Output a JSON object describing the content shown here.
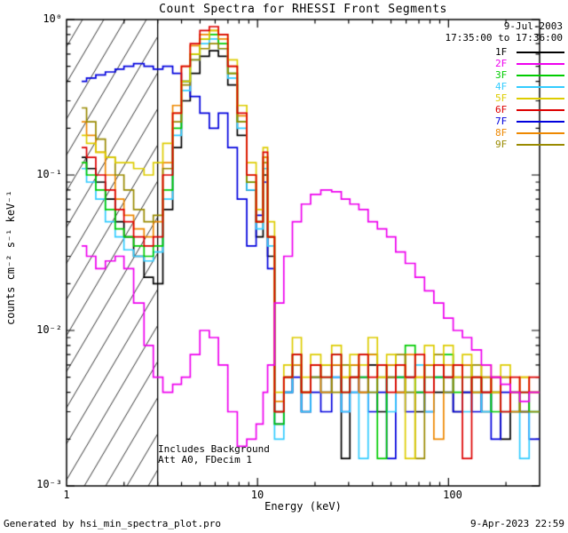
{
  "header": {
    "date": "9-Jul-2003",
    "time_range": "17:35:00 to 17:36:00"
  },
  "annotations": {
    "background_note": "Includes Background",
    "attenuator_note": "Att A0, FDecim 1"
  },
  "footer": {
    "left": "Generated by hsi_min_spectra_plot.pro",
    "right": "9-Apr-2023 22:59"
  },
  "chart_data": {
    "type": "line",
    "style": "step-histogram",
    "title": "Count Spectra for RHESSI Front Segments",
    "xlabel": "Energy (keV)",
    "ylabel": "counts cm⁻² s⁻¹ keV⁻¹",
    "xscale": "log",
    "yscale": "log",
    "xlim": [
      1,
      300
    ],
    "ylim": [
      0.001,
      1
    ],
    "grid": false,
    "legend_position": "top-right",
    "excluded_region": {
      "xmin": 1,
      "xmax": 3,
      "style": "diagonal-hatch"
    },
    "x_ticks": [
      {
        "value": 1,
        "label": "1"
      },
      {
        "value": 10,
        "label": "10"
      },
      {
        "value": 100,
        "label": "100"
      }
    ],
    "y_ticks": [
      {
        "value": 1,
        "label": "10⁰"
      },
      {
        "value": 0.1,
        "label": "10⁻¹"
      },
      {
        "value": 0.01,
        "label": "10⁻²"
      },
      {
        "value": 0.001,
        "label": "10⁻³"
      }
    ],
    "x": [
      1.2,
      1.35,
      1.5,
      1.7,
      1.9,
      2.1,
      2.4,
      2.7,
      3.0,
      3.4,
      3.8,
      4.2,
      4.7,
      5.3,
      5.9,
      6.6,
      7.4,
      8.3,
      9.3,
      10.4,
      11.0,
      11.6,
      13,
      14.5,
      16,
      18,
      20,
      23,
      26,
      29,
      32,
      36,
      40,
      45,
      50,
      56,
      63,
      71,
      79,
      89,
      100,
      112,
      125,
      140,
      158,
      177,
      199,
      223,
      250,
      280
    ],
    "series": [
      {
        "name": "1F",
        "color": "#000000",
        "values": [
          0.13,
          0.11,
          0.09,
          0.07,
          0.05,
          0.04,
          0.03,
          0.022,
          0.02,
          0.06,
          0.15,
          0.3,
          0.45,
          0.58,
          0.63,
          0.58,
          0.38,
          0.18,
          0.08,
          0.04,
          0.1,
          0.03,
          0.003,
          0.004,
          0.006,
          0.003,
          0.005,
          0.004,
          0.006,
          0.0015,
          0.005,
          0.004,
          0.006,
          0.003,
          0.005,
          0.004,
          0.005,
          0.003,
          0.006,
          0.004,
          0.005,
          0.003,
          0.004,
          0.005,
          0.003,
          0.004,
          0.002,
          0.004,
          0.003,
          0.004
        ]
      },
      {
        "name": "2F",
        "color": "#ee00ee",
        "values": [
          0.035,
          0.03,
          0.025,
          0.028,
          0.03,
          0.025,
          0.015,
          0.008,
          0.005,
          0.004,
          0.0045,
          0.005,
          0.007,
          0.01,
          0.009,
          0.006,
          0.003,
          0.0018,
          0.002,
          0.0025,
          0.004,
          0.006,
          0.015,
          0.03,
          0.05,
          0.065,
          0.075,
          0.08,
          0.078,
          0.07,
          0.065,
          0.06,
          0.05,
          0.045,
          0.04,
          0.032,
          0.027,
          0.022,
          0.018,
          0.015,
          0.012,
          0.01,
          0.009,
          0.0075,
          0.006,
          0.005,
          0.0045,
          0.004,
          0.0035,
          0.004
        ]
      },
      {
        "name": "3F",
        "color": "#00cc00",
        "values": [
          0.12,
          0.1,
          0.08,
          0.06,
          0.045,
          0.04,
          0.035,
          0.03,
          0.035,
          0.08,
          0.2,
          0.4,
          0.6,
          0.75,
          0.8,
          0.7,
          0.45,
          0.22,
          0.09,
          0.05,
          0.13,
          0.04,
          0.0025,
          0.005,
          0.007,
          0.004,
          0.006,
          0.005,
          0.007,
          0.004,
          0.006,
          0.005,
          0.007,
          0.0015,
          0.006,
          0.005,
          0.008,
          0.004,
          0.006,
          0.005,
          0.007,
          0.004,
          0.006,
          0.004,
          0.005,
          0.003,
          0.005,
          0.003,
          0.004,
          0.003
        ]
      },
      {
        "name": "4F",
        "color": "#33ccff",
        "values": [
          0.11,
          0.09,
          0.07,
          0.05,
          0.04,
          0.033,
          0.03,
          0.028,
          0.032,
          0.07,
          0.18,
          0.35,
          0.55,
          0.7,
          0.75,
          0.65,
          0.42,
          0.2,
          0.08,
          0.045,
          0.11,
          0.035,
          0.002,
          0.004,
          0.006,
          0.003,
          0.005,
          0.004,
          0.005,
          0.003,
          0.004,
          0.0015,
          0.004,
          0.005,
          0.003,
          0.005,
          0.004,
          0.006,
          0.003,
          0.005,
          0.004,
          0.005,
          0.003,
          0.004,
          0.003,
          0.004,
          0.003,
          0.004,
          0.0015,
          0.003
        ]
      },
      {
        "name": "5F",
        "color": "#ddcc00",
        "values": [
          0.18,
          0.16,
          0.14,
          0.13,
          0.12,
          0.12,
          0.11,
          0.1,
          0.12,
          0.16,
          0.25,
          0.4,
          0.6,
          0.75,
          0.85,
          0.8,
          0.55,
          0.28,
          0.12,
          0.06,
          0.15,
          0.05,
          0.004,
          0.006,
          0.009,
          0.005,
          0.007,
          0.006,
          0.008,
          0.005,
          0.007,
          0.006,
          0.009,
          0.005,
          0.007,
          0.006,
          0.0015,
          0.005,
          0.008,
          0.006,
          0.008,
          0.005,
          0.007,
          0.005,
          0.006,
          0.004,
          0.006,
          0.004,
          0.005,
          0.004
        ]
      },
      {
        "name": "6F",
        "color": "#dd0000",
        "values": [
          0.15,
          0.13,
          0.1,
          0.08,
          0.06,
          0.05,
          0.04,
          0.035,
          0.04,
          0.1,
          0.25,
          0.5,
          0.7,
          0.85,
          0.9,
          0.8,
          0.5,
          0.25,
          0.1,
          0.05,
          0.14,
          0.04,
          0.003,
          0.005,
          0.007,
          0.004,
          0.006,
          0.005,
          0.007,
          0.004,
          0.005,
          0.007,
          0.005,
          0.006,
          0.004,
          0.006,
          0.005,
          0.007,
          0.004,
          0.006,
          0.005,
          0.006,
          0.0015,
          0.005,
          0.004,
          0.005,
          0.003,
          0.005,
          0.004,
          0.005
        ]
      },
      {
        "name": "7F",
        "color": "#0000dd",
        "values": [
          0.4,
          0.42,
          0.44,
          0.46,
          0.48,
          0.5,
          0.52,
          0.5,
          0.48,
          0.5,
          0.45,
          0.4,
          0.32,
          0.25,
          0.2,
          0.25,
          0.15,
          0.07,
          0.035,
          0.055,
          0.09,
          0.025,
          0.0025,
          0.004,
          0.005,
          0.003,
          0.004,
          0.003,
          0.005,
          0.003,
          0.004,
          0.005,
          0.003,
          0.004,
          0.0015,
          0.005,
          0.003,
          0.004,
          0.003,
          0.005,
          0.004,
          0.003,
          0.004,
          0.003,
          0.004,
          0.002,
          0.004,
          0.003,
          0.003,
          0.002
        ]
      },
      {
        "name": "8F",
        "color": "#ee8800",
        "values": [
          0.22,
          0.18,
          0.14,
          0.1,
          0.07,
          0.055,
          0.045,
          0.04,
          0.05,
          0.12,
          0.28,
          0.5,
          0.68,
          0.8,
          0.85,
          0.75,
          0.5,
          0.24,
          0.1,
          0.05,
          0.13,
          0.04,
          0.0035,
          0.005,
          0.006,
          0.004,
          0.006,
          0.004,
          0.006,
          0.005,
          0.006,
          0.004,
          0.007,
          0.005,
          0.006,
          0.004,
          0.007,
          0.005,
          0.006,
          0.002,
          0.006,
          0.005,
          0.006,
          0.004,
          0.005,
          0.004,
          0.005,
          0.003,
          0.005,
          0.004
        ]
      },
      {
        "name": "9F",
        "color": "#998a00",
        "values": [
          0.27,
          0.22,
          0.17,
          0.13,
          0.1,
          0.08,
          0.06,
          0.05,
          0.055,
          0.11,
          0.22,
          0.38,
          0.55,
          0.65,
          0.7,
          0.65,
          0.45,
          0.22,
          0.09,
          0.05,
          0.12,
          0.04,
          0.003,
          0.005,
          0.007,
          0.004,
          0.005,
          0.006,
          0.004,
          0.006,
          0.005,
          0.007,
          0.004,
          0.006,
          0.005,
          0.007,
          0.004,
          0.0015,
          0.005,
          0.007,
          0.004,
          0.006,
          0.005,
          0.006,
          0.004,
          0.005,
          0.003,
          0.004,
          0.003,
          0.003
        ]
      }
    ]
  }
}
